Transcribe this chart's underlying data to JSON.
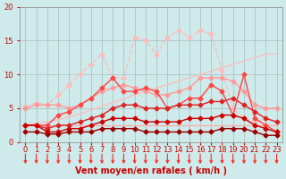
{
  "xlabel": "Vent moyen/en rafales ( km/h )",
  "xlim": [
    -0.5,
    23.5
  ],
  "ylim": [
    0,
    20
  ],
  "xticks": [
    0,
    1,
    2,
    3,
    4,
    5,
    6,
    7,
    8,
    9,
    10,
    11,
    12,
    13,
    14,
    15,
    16,
    17,
    18,
    19,
    20,
    21,
    22,
    23
  ],
  "yticks": [
    0,
    5,
    10,
    15,
    20
  ],
  "background_color": "#ceeaea",
  "grid_color": "#aabbbb",
  "series": [
    {
      "x": [
        0,
        1,
        2,
        3,
        4,
        5,
        6,
        7,
        8,
        9,
        10,
        11,
        12,
        13,
        14,
        15,
        16,
        17,
        18,
        19,
        20,
        21,
        22,
        23
      ],
      "y": [
        2.5,
        2.5,
        2.5,
        2.5,
        2.5,
        2.5,
        2.5,
        2.5,
        2.5,
        2.5,
        2.5,
        2.5,
        2.5,
        2.5,
        2.5,
        2.5,
        2.5,
        2.5,
        2.5,
        2.5,
        2.5,
        2.5,
        2.5,
        2.5
      ],
      "color": "#ffaaaa",
      "lw": 0.9,
      "marker": null,
      "ls": "-"
    },
    {
      "x": [
        0,
        1,
        2,
        3,
        4,
        5,
        6,
        7,
        8,
        9,
        10,
        11,
        12,
        13,
        14,
        15,
        16,
        17,
        18,
        19,
        20,
        21,
        22,
        23
      ],
      "y": [
        2.5,
        2.8,
        3.0,
        3.3,
        3.7,
        4.2,
        4.7,
        5.3,
        5.8,
        6.4,
        7.0,
        7.5,
        8.0,
        8.5,
        9.0,
        9.5,
        10.0,
        10.5,
        11.0,
        11.5,
        12.0,
        12.5,
        13.0,
        13.0
      ],
      "color": "#ffbbbb",
      "lw": 0.9,
      "marker": null,
      "ls": "-"
    },
    {
      "x": [
        0,
        1,
        2,
        3,
        4,
        5,
        6,
        7,
        8,
        9,
        10,
        11,
        12,
        13,
        14,
        15,
        16,
        17,
        18,
        19,
        20,
        21,
        22,
        23
      ],
      "y": [
        5.2,
        5.8,
        5.5,
        7.0,
        8.5,
        10.0,
        11.5,
        13.0,
        9.5,
        9.5,
        15.5,
        15.0,
        13.0,
        15.5,
        16.5,
        15.5,
        16.5,
        16.0,
        10.5,
        5.0,
        3.5,
        3.0,
        3.5,
        3.0
      ],
      "color": "#ffbbbb",
      "lw": 1.0,
      "marker": "D",
      "ms": 2.5,
      "ls": "--"
    },
    {
      "x": [
        0,
        1,
        2,
        3,
        4,
        5,
        6,
        7,
        8,
        9,
        10,
        11,
        12,
        13,
        14,
        15,
        16,
        17,
        18,
        19,
        20,
        21,
        22,
        23
      ],
      "y": [
        5.0,
        5.5,
        5.5,
        5.5,
        5.0,
        5.5,
        6.5,
        7.5,
        8.0,
        8.5,
        8.0,
        7.5,
        7.0,
        7.0,
        7.5,
        8.0,
        9.5,
        9.5,
        9.5,
        9.0,
        7.5,
        5.5,
        5.0,
        5.0
      ],
      "color": "#ff9999",
      "lw": 1.0,
      "marker": "D",
      "ms": 2.5,
      "ls": "-"
    },
    {
      "x": [
        0,
        1,
        2,
        3,
        4,
        5,
        6,
        7,
        8,
        9,
        10,
        11,
        12,
        13,
        14,
        15,
        16,
        17,
        18,
        19,
        20,
        21,
        22,
        23
      ],
      "y": [
        2.5,
        2.5,
        2.5,
        4.0,
        4.5,
        5.5,
        6.5,
        8.0,
        9.5,
        7.5,
        7.5,
        8.0,
        7.5,
        5.0,
        5.5,
        6.5,
        6.5,
        8.5,
        7.5,
        4.0,
        10.0,
        3.5,
        2.5,
        1.5
      ],
      "color": "#ff4444",
      "lw": 1.0,
      "marker": "D",
      "ms": 2.5,
      "ls": "-"
    },
    {
      "x": [
        0,
        1,
        2,
        3,
        4,
        5,
        6,
        7,
        8,
        9,
        10,
        11,
        12,
        13,
        14,
        15,
        16,
        17,
        18,
        19,
        20,
        21,
        22,
        23
      ],
      "y": [
        2.5,
        2.5,
        2.0,
        2.5,
        2.5,
        3.0,
        3.5,
        4.0,
        5.0,
        5.5,
        5.5,
        5.0,
        5.0,
        5.0,
        5.5,
        5.5,
        5.5,
        6.0,
        6.0,
        6.5,
        5.5,
        4.5,
        3.5,
        3.0
      ],
      "color": "#dd2222",
      "lw": 1.0,
      "marker": "D",
      "ms": 2.5,
      "ls": "-"
    },
    {
      "x": [
        0,
        1,
        2,
        3,
        4,
        5,
        6,
        7,
        8,
        9,
        10,
        11,
        12,
        13,
        14,
        15,
        16,
        17,
        18,
        19,
        20,
        21,
        22,
        23
      ],
      "y": [
        2.5,
        2.5,
        1.5,
        1.5,
        2.0,
        2.0,
        2.5,
        3.0,
        3.5,
        3.5,
        3.5,
        3.0,
        3.0,
        3.0,
        3.0,
        3.5,
        3.5,
        3.5,
        4.0,
        4.0,
        3.5,
        2.5,
        2.0,
        1.5
      ],
      "color": "#cc0000",
      "lw": 1.0,
      "marker": "D",
      "ms": 2.5,
      "ls": "-"
    },
    {
      "x": [
        0,
        1,
        2,
        3,
        4,
        5,
        6,
        7,
        8,
        9,
        10,
        11,
        12,
        13,
        14,
        15,
        16,
        17,
        18,
        19,
        20,
        21,
        22,
        23
      ],
      "y": [
        1.5,
        1.5,
        1.2,
        1.2,
        1.5,
        1.5,
        1.5,
        2.0,
        2.0,
        2.0,
        2.0,
        1.5,
        1.5,
        1.5,
        1.5,
        1.5,
        1.5,
        1.5,
        2.0,
        2.0,
        2.0,
        1.5,
        1.0,
        1.0
      ],
      "color": "#990000",
      "lw": 1.0,
      "marker": "D",
      "ms": 2.5,
      "ls": "-"
    }
  ],
  "arrow_color": "#ff2222",
  "xlabel_color": "#cc0000",
  "xlabel_fontsize": 7,
  "tick_fontsize": 6,
  "tick_color": "#cc0000",
  "ylabel_fontsize": 7,
  "ylabel_color": "#cc0000"
}
